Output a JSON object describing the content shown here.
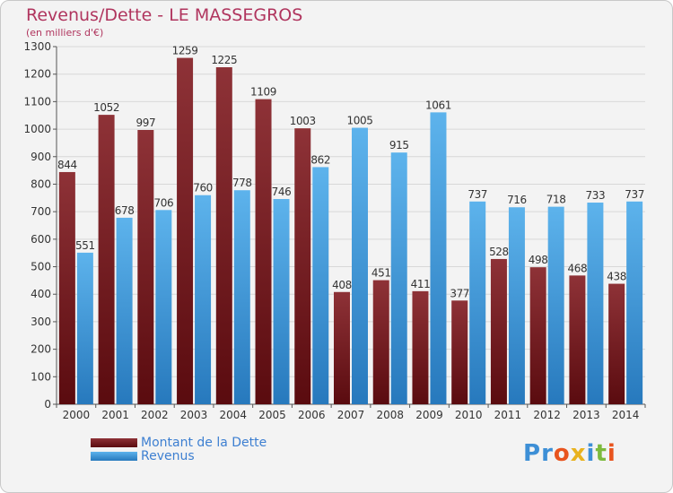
{
  "chart_data": {
    "type": "bar",
    "title": "Revenus/Dette - LE MASSEGROS",
    "subtitle": "(en milliers d'€)",
    "categories": [
      "2000",
      "2001",
      "2002",
      "2003",
      "2004",
      "2005",
      "2006",
      "2007",
      "2008",
      "2009",
      "2010",
      "2011",
      "2012",
      "2013",
      "2014"
    ],
    "series": [
      {
        "name": "Montant de la Dette",
        "color": "#7a1f24",
        "values": [
          844,
          1052,
          997,
          1259,
          1225,
          1109,
          1003,
          408,
          451,
          411,
          377,
          528,
          498,
          468,
          438
        ]
      },
      {
        "name": "Revenus",
        "color": "#3d9ee3",
        "values": [
          551,
          678,
          706,
          760,
          778,
          746,
          862,
          1005,
          915,
          1061,
          737,
          716,
          718,
          733,
          737
        ]
      }
    ],
    "ylim": [
      0,
      1300
    ],
    "yticks": [
      0,
      100,
      200,
      300,
      400,
      500,
      600,
      700,
      800,
      900,
      1000,
      1100,
      1200,
      1300
    ],
    "grid": true,
    "legend_position": "bottom-left"
  },
  "brand": {
    "logo_letters": [
      "P",
      "r",
      "o",
      "x",
      "i",
      "t",
      "i"
    ],
    "logo_colors": [
      "#3d8fd6",
      "#3d8fd6",
      "#e8541e",
      "#e8b21e",
      "#3d8fd6",
      "#7cba3d",
      "#e8541e"
    ]
  }
}
